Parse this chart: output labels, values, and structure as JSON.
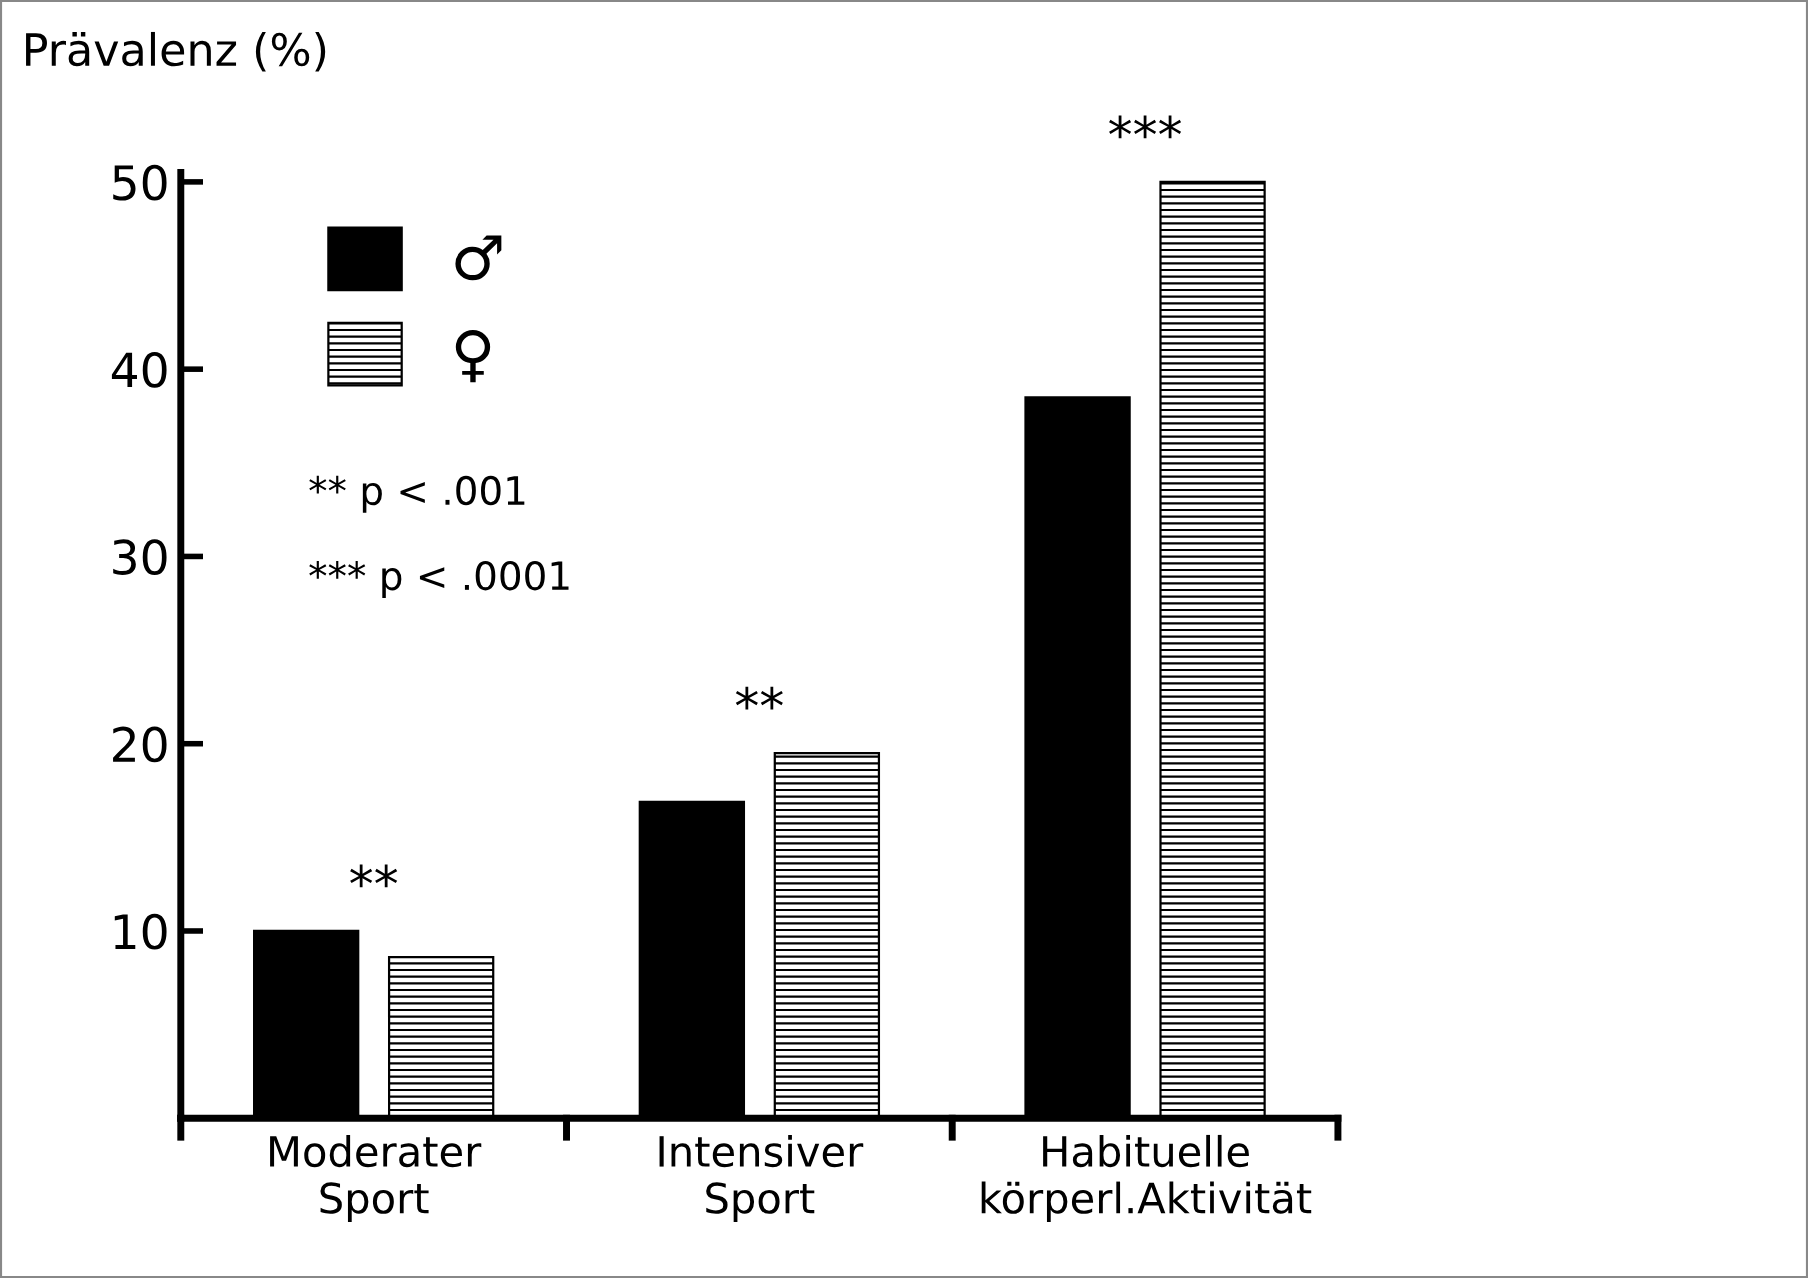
{
  "chart_data": {
    "type": "bar",
    "ylabel": "Prävalenz (%)",
    "categories": [
      "Moderater\nSport",
      "Intensiver\nSport",
      "Habituelle\nkörperl.Aktivität"
    ],
    "series": [
      {
        "name": "♂",
        "color": "#000000",
        "values": [
          10.0,
          16.9,
          38.5
        ]
      },
      {
        "name": "♀",
        "color": "#000000",
        "values": [
          8.6,
          19.5,
          50.0
        ]
      }
    ],
    "ylim": [
      0,
      50.5
    ],
    "yticks": [
      10,
      20,
      30,
      40,
      50
    ],
    "grid": false,
    "legend": "top left",
    "annotations": [
      "**",
      "**",
      "***",
      "** p < .001",
      "*** p < .0001"
    ]
  }
}
